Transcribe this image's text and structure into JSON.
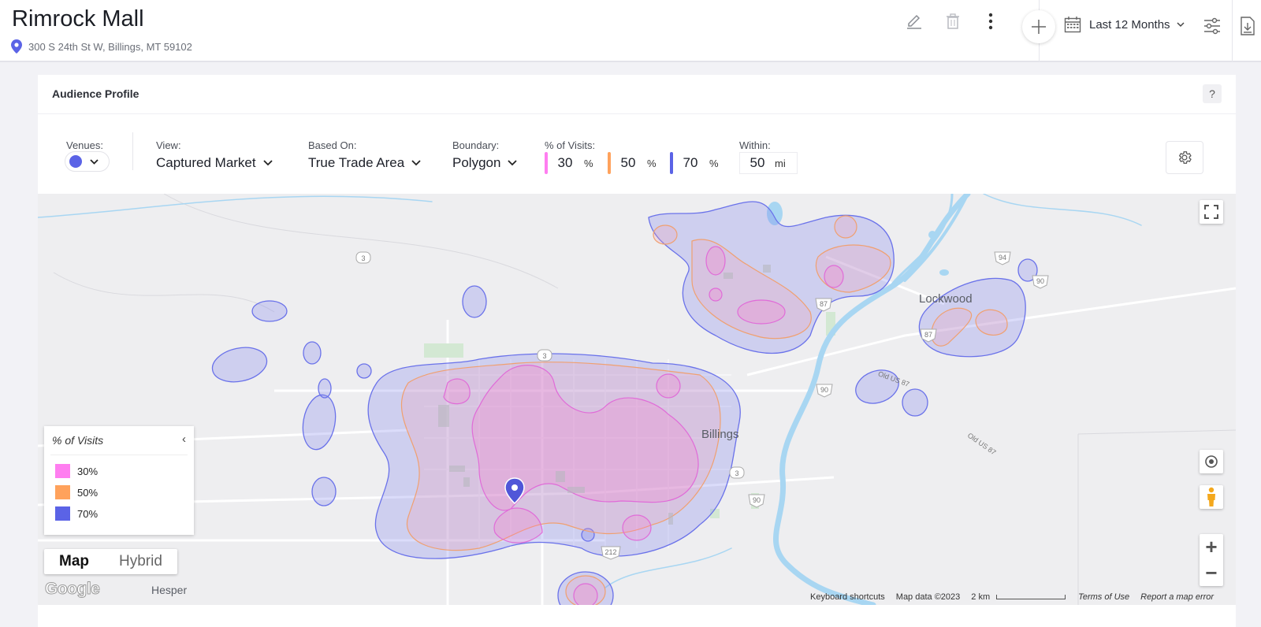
{
  "header": {
    "title": "Rimrock Mall",
    "address": "300 S 24th St W, Billings, MT 59102",
    "date_range": "Last 12 Months",
    "icons": [
      "pencil-icon",
      "trash-icon",
      "more-vertical-icon",
      "plus-icon",
      "calendar-icon",
      "chevron-down-icon",
      "sliders-icon",
      "download-icon"
    ]
  },
  "card": {
    "title": "Audience Profile",
    "help": "?",
    "controls": {
      "venues_label": "Venues:",
      "venue_color": "#5b63e6",
      "view_label": "View:",
      "view_value": "Captured Market",
      "based_on_label": "Based On:",
      "based_on_value": "True Trade Area",
      "boundary_label": "Boundary:",
      "boundary_value": "Polygon",
      "visits_label": "% of Visits:",
      "visits": [
        {
          "value": "30",
          "unit": "%",
          "color": "#ff7ef0"
        },
        {
          "value": "50",
          "unit": "%",
          "color": "#ffa25c"
        },
        {
          "value": "70",
          "unit": "%",
          "color": "#5b63e6"
        }
      ],
      "within_label": "Within:",
      "within_value": "50",
      "within_unit": "mi"
    }
  },
  "map": {
    "cities": {
      "lockwood": "Lockwood",
      "billings": "Billings",
      "hesper": "Hesper"
    },
    "legend": {
      "title": "% of Visits",
      "items": [
        {
          "label": "30%",
          "color": "#ff7ef0"
        },
        {
          "label": "50%",
          "color": "#ffa25c"
        },
        {
          "label": "70%",
          "color": "#5b63e6"
        }
      ]
    },
    "map_types": [
      "Map",
      "Hybrid"
    ],
    "active_map_type": "Map",
    "google_logo": "Google",
    "footer": {
      "shortcuts": "Keyboard shortcuts",
      "data": "Map data ©2023",
      "scale": "2 km",
      "terms": "Terms of Use",
      "report": "Report a map error"
    },
    "road_labels": [
      "3",
      "3",
      "94",
      "90",
      "87",
      "87",
      "90",
      "90",
      "212",
      "3",
      "Old US 87",
      "Old US 87"
    ]
  }
}
